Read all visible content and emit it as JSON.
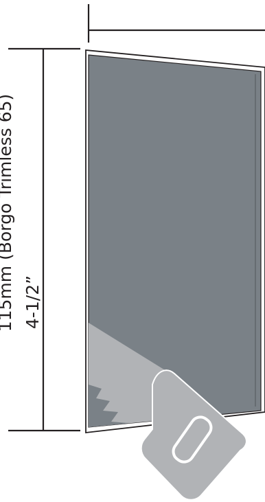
{
  "dimension": {
    "line1": "115mm (Borgo Trimless 65)",
    "line2": "4-1/2”"
  },
  "colors": {
    "panel_fill": "#7a8187",
    "panel_outline": "#231f20",
    "frame_fill": "#ffffff",
    "saw_fill": "#b1b3b6",
    "saw_outline": "#ffffff",
    "dimension_line": "#231f20"
  },
  "icons": {
    "saw": "hand-saw-icon"
  }
}
